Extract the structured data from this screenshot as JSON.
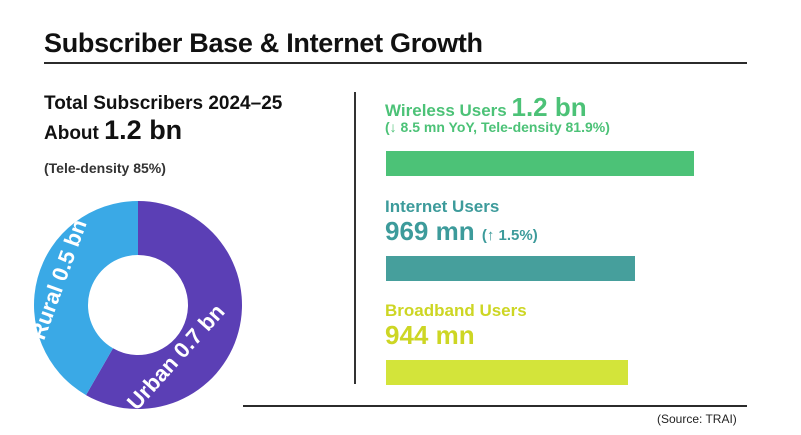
{
  "title": "Subscriber Base & Internet Growth",
  "summary": {
    "line1": "Total Subscribers 2024–25",
    "line2_prefix": "About",
    "line2_value": "1.2 bn",
    "teledensity": "(Tele-density 85%)"
  },
  "metrics": {
    "wireless": {
      "label": "Wireless Users",
      "value": "1.2 bn",
      "sub": "(↓ 8.5 mn YoY, Tele-density 81.9%)"
    },
    "internet": {
      "label": "Internet Users",
      "value": "969 mn",
      "sub": "(↑ 1.5%)"
    },
    "broadband": {
      "label": "Broadband Users",
      "value": "944 mn"
    }
  },
  "source": "(Source: TRAI)",
  "colors": {
    "rural": "#3aa9e6",
    "urban": "#5b3fb5",
    "wireless": "#4cc277",
    "internet": "#469f9c",
    "broadband": "#d3e43a"
  },
  "chart_data": [
    {
      "type": "pie",
      "title": "",
      "slices": [
        {
          "label": "Rural 0.5 bn",
          "value": 0.5
        },
        {
          "label": "Urban 0.7 bn",
          "value": 0.7
        }
      ]
    },
    {
      "type": "bar",
      "orientation": "horizontal",
      "categories": [
        "Wireless Users",
        "Internet Users",
        "Broadband Users"
      ],
      "values": [
        1200,
        969,
        944
      ],
      "unit": "mn"
    }
  ]
}
